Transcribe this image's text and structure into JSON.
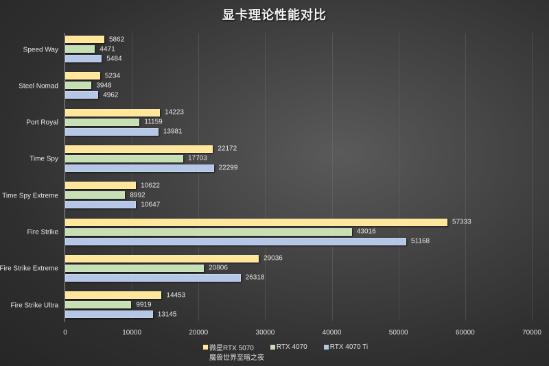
{
  "title": "显卡理论性能对比",
  "chart_data": {
    "type": "bar",
    "orientation": "horizontal",
    "title": "显卡理论性能对比",
    "xlabel": "",
    "ylabel": "",
    "xlim": [
      0,
      70000
    ],
    "xticks": [
      0,
      10000,
      20000,
      30000,
      40000,
      50000,
      60000,
      70000
    ],
    "grid": true,
    "legend_position": "bottom",
    "categories": [
      "Speed Way",
      "Steel Nomad",
      "Port Royal",
      "Time Spy",
      "Time Spy Extreme",
      "Fire Strike",
      "Fire Strike Extreme",
      "Fire Strike Ultra"
    ],
    "series": [
      {
        "name": "微星RTX 5070 魔兽世界至暗之夜",
        "color": "#ffe699",
        "values": [
          5862,
          5234,
          14223,
          22172,
          10622,
          57333,
          29036,
          14453
        ]
      },
      {
        "name": "RTX 4070",
        "color": "#c6e0b4",
        "values": [
          4471,
          3948,
          11159,
          17703,
          8992,
          43016,
          20806,
          9919
        ]
      },
      {
        "name": "RTX 4070 Ti",
        "color": "#b4c7e7",
        "values": [
          5484,
          4962,
          13981,
          22299,
          10647,
          51168,
          26318,
          13145
        ]
      }
    ]
  },
  "legend": {
    "items": [
      {
        "label": "微星RTX 5070",
        "color": "#ffe699"
      },
      {
        "label": "RTX 4070",
        "color": "#c6e0b4"
      },
      {
        "label": "RTX 4070 Ti",
        "color": "#b4c7e7"
      }
    ],
    "subtitle": "魔兽世界至暗之夜"
  }
}
